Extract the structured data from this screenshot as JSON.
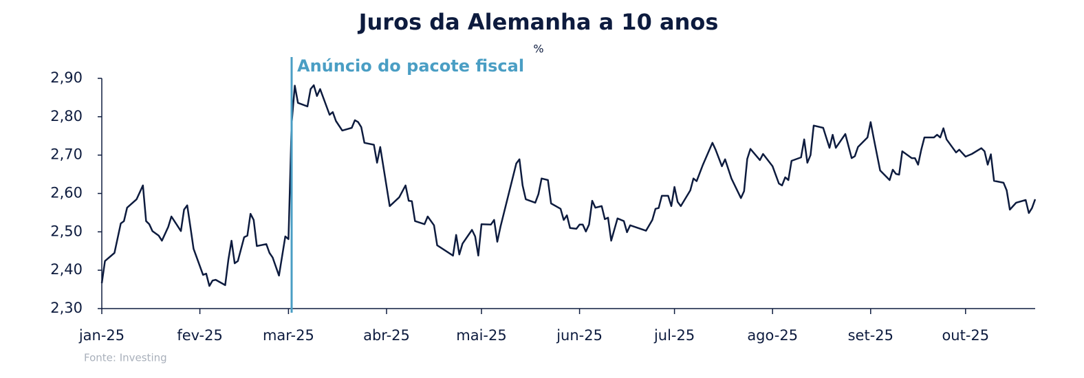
{
  "chart_data": {
    "type": "line",
    "title": "Juros da Alemanha a 10 anos",
    "subtitle": "%",
    "source": "Fonte: Investing",
    "annotation": {
      "text": "Anúncio do pacote fiscal",
      "x": 60,
      "color": "#4a9ec4"
    },
    "color": "#0d1b3e",
    "xlim": [
      0,
      295
    ],
    "xticks": [
      {
        "value": 0,
        "label": "jan-25"
      },
      {
        "value": 31,
        "label": "fev-25"
      },
      {
        "value": 59,
        "label": "mar-25"
      },
      {
        "value": 90,
        "label": "abr-25"
      },
      {
        "value": 120,
        "label": "mai-25"
      },
      {
        "value": 151,
        "label": "jun-25"
      },
      {
        "value": 181,
        "label": "jul-25"
      },
      {
        "value": 212,
        "label": "ago-25"
      },
      {
        "value": 243,
        "label": "set-25"
      },
      {
        "value": 273,
        "label": "out-25"
      }
    ],
    "ylim": [
      2.3,
      2.9
    ],
    "yticks": [
      {
        "value": 2.3,
        "label": "2,30"
      },
      {
        "value": 2.4,
        "label": "2,40"
      },
      {
        "value": 2.5,
        "label": "2,50"
      },
      {
        "value": 2.6,
        "label": "2,60"
      },
      {
        "value": 2.7,
        "label": "2,70"
      },
      {
        "value": 2.8,
        "label": "2,80"
      },
      {
        "value": 2.9,
        "label": "2,90"
      }
    ],
    "x": [
      0,
      1,
      4,
      6,
      7,
      8,
      11,
      13,
      14,
      15,
      16,
      18,
      19,
      21,
      22,
      25,
      26,
      27,
      28,
      29,
      32,
      33,
      34,
      35,
      36,
      39,
      40,
      41,
      42,
      43,
      45,
      46,
      47,
      48,
      49,
      52,
      53,
      54,
      56,
      58,
      59,
      60,
      61,
      62,
      65,
      66,
      67,
      68,
      69,
      72,
      73,
      74,
      76,
      79,
      80,
      81,
      82,
      83,
      86,
      87,
      88,
      91,
      94,
      96,
      97,
      98,
      99,
      102,
      103,
      105,
      106,
      111,
      112,
      113,
      114,
      117,
      118,
      119,
      120,
      123,
      124,
      125,
      126,
      131,
      132,
      133,
      134,
      137,
      138,
      139,
      141,
      142,
      145,
      146,
      147,
      148,
      150,
      151,
      152,
      153,
      154,
      155,
      156,
      158,
      159,
      160,
      161,
      163,
      165,
      166,
      167,
      172,
      174,
      175,
      176,
      177,
      179,
      180,
      181,
      182,
      183,
      186,
      187,
      188,
      190,
      193,
      194,
      196,
      197,
      199,
      202,
      203,
      204,
      205,
      208,
      209,
      212,
      214,
      215,
      216,
      217,
      218,
      221,
      222,
      223,
      224,
      225,
      228,
      230,
      231,
      232,
      235,
      237,
      238,
      239,
      242,
      243,
      244,
      246,
      249,
      250,
      251,
      252,
      253,
      256,
      257,
      258,
      259,
      260,
      263,
      264,
      265,
      266,
      267,
      270,
      271,
      273,
      275,
      278,
      279,
      280,
      281,
      282,
      285,
      286,
      287,
      289,
      292,
      293,
      294,
      295
    ],
    "values": [
      2.366,
      2.424,
      2.445,
      2.522,
      2.528,
      2.563,
      2.585,
      2.621,
      2.528,
      2.52,
      2.502,
      2.49,
      2.477,
      2.513,
      2.54,
      2.502,
      2.558,
      2.569,
      2.513,
      2.456,
      2.388,
      2.391,
      2.359,
      2.373,
      2.375,
      2.361,
      2.427,
      2.477,
      2.418,
      2.424,
      2.486,
      2.49,
      2.547,
      2.531,
      2.463,
      2.468,
      2.445,
      2.433,
      2.386,
      2.488,
      2.481,
      2.782,
      2.881,
      2.836,
      2.827,
      2.872,
      2.882,
      2.854,
      2.872,
      2.805,
      2.812,
      2.789,
      2.764,
      2.771,
      2.791,
      2.786,
      2.773,
      2.732,
      2.727,
      2.68,
      2.721,
      2.567,
      2.59,
      2.621,
      2.581,
      2.58,
      2.528,
      2.52,
      2.54,
      2.517,
      2.465,
      2.438,
      2.492,
      2.441,
      2.469,
      2.505,
      2.488,
      2.438,
      2.52,
      2.519,
      2.531,
      2.474,
      2.513,
      2.678,
      2.689,
      2.621,
      2.585,
      2.576,
      2.598,
      2.639,
      2.635,
      2.574,
      2.56,
      2.531,
      2.543,
      2.51,
      2.508,
      2.519,
      2.519,
      2.501,
      2.519,
      2.581,
      2.563,
      2.567,
      2.533,
      2.537,
      2.477,
      2.535,
      2.528,
      2.499,
      2.517,
      2.503,
      2.531,
      2.56,
      2.562,
      2.594,
      2.594,
      2.567,
      2.617,
      2.578,
      2.567,
      2.608,
      2.639,
      2.632,
      2.675,
      2.732,
      2.714,
      2.671,
      2.689,
      2.639,
      2.588,
      2.606,
      2.69,
      2.716,
      2.687,
      2.703,
      2.671,
      2.626,
      2.621,
      2.642,
      2.635,
      2.685,
      2.694,
      2.741,
      2.68,
      2.7,
      2.777,
      2.771,
      2.719,
      2.753,
      2.719,
      2.755,
      2.692,
      2.697,
      2.721,
      2.746,
      2.786,
      2.743,
      2.66,
      2.635,
      2.662,
      2.651,
      2.649,
      2.71,
      2.692,
      2.692,
      2.675,
      2.714,
      2.746,
      2.746,
      2.753,
      2.746,
      2.77,
      2.741,
      2.707,
      2.714,
      2.696,
      2.703,
      2.718,
      2.71,
      2.675,
      2.702,
      2.633,
      2.628,
      2.608,
      2.558,
      2.576,
      2.583,
      2.549,
      2.562,
      2.585
    ]
  }
}
